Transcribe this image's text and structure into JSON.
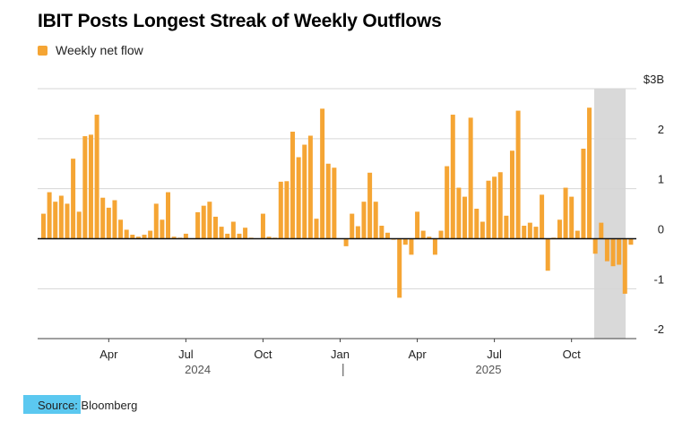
{
  "colors": {
    "bar": "#f5a534",
    "shade": "#d9d9d9",
    "grid": "#d6d6d6",
    "zero": "#111111",
    "highlight": "#5bc8f0"
  },
  "footer": {
    "source_prefix": "Source",
    "source_rest": ": Bloomberg"
  },
  "chart_data": {
    "type": "bar",
    "title": "IBIT Posts Longest Streak of Weekly Outflows",
    "legend": [
      "Weekly net flow"
    ],
    "xlabel": "",
    "ylabel": "",
    "ylim": [
      -2.0,
      3.0
    ],
    "yticks": [
      {
        "value": 3,
        "label": "$3B"
      },
      {
        "value": 2,
        "label": "2"
      },
      {
        "value": 1,
        "label": "1"
      },
      {
        "value": 0,
        "label": "0"
      },
      {
        "value": -1,
        "label": "-1"
      },
      {
        "value": -2,
        "label": "-2"
      }
    ],
    "month_ticks": [
      {
        "week": 11,
        "label": "Apr"
      },
      {
        "week": 24,
        "label": "Jul"
      },
      {
        "week": 37,
        "label": "Oct"
      },
      {
        "week": 50,
        "label": "Jan"
      },
      {
        "week": 63,
        "label": "Apr"
      },
      {
        "week": 76,
        "label": "Jul"
      },
      {
        "week": 89,
        "label": "Oct"
      }
    ],
    "years": [
      {
        "week": 26,
        "label": "2024"
      },
      {
        "week": 75,
        "label": "2025"
      }
    ],
    "year_separator_week": 50.5,
    "highlight_from_week": 93,
    "series": [
      {
        "name": "Weekly net flow",
        "values": [
          0.5,
          0.93,
          0.74,
          0.86,
          0.7,
          1.6,
          0.54,
          2.05,
          2.08,
          2.48,
          0.82,
          0.62,
          0.77,
          0.38,
          0.18,
          0.08,
          0.04,
          0.08,
          0.16,
          0.7,
          0.38,
          0.93,
          0.04,
          0.02,
          0.1,
          0.0,
          0.53,
          0.66,
          0.74,
          0.44,
          0.24,
          0.1,
          0.34,
          0.1,
          0.22,
          0.02,
          0.0,
          0.5,
          0.04,
          0.02,
          1.14,
          1.15,
          2.14,
          1.63,
          1.88,
          2.06,
          0.4,
          2.6,
          1.5,
          1.42,
          0.0,
          -0.15,
          0.5,
          0.25,
          0.74,
          1.32,
          0.74,
          0.26,
          0.12,
          -0.02,
          -1.18,
          -0.12,
          -0.32,
          0.54,
          0.16,
          0.04,
          -0.32,
          0.16,
          1.45,
          2.48,
          1.02,
          0.84,
          2.42,
          0.6,
          0.34,
          1.16,
          1.24,
          1.33,
          0.46,
          1.76,
          2.56,
          0.26,
          0.32,
          0.24,
          0.88,
          -0.64,
          0.02,
          0.38,
          1.02,
          0.84,
          0.16,
          1.8,
          2.62,
          -0.3,
          0.32,
          -0.45,
          -0.55,
          -0.52,
          -1.1,
          -0.12,
          0.0
        ]
      }
    ]
  }
}
